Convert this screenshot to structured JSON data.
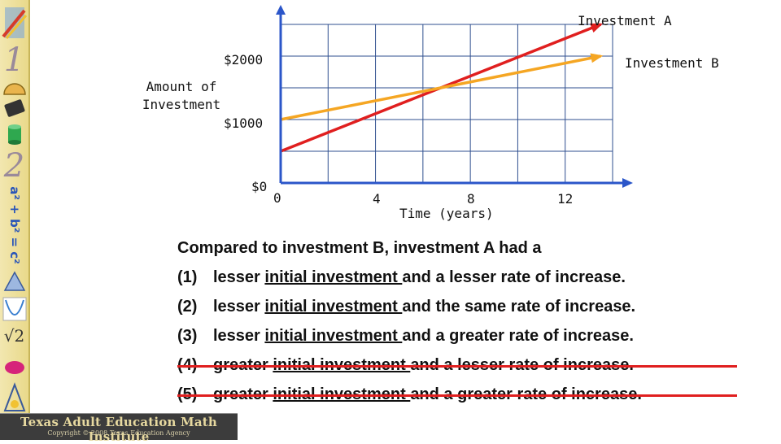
{
  "footer": {
    "title": "Texas Adult Education Math Institute",
    "copyright": "Copyright © 2008 Texas Education Agency"
  },
  "sidebar": {
    "icons": [
      "pencil-icon",
      "digit-one-icon",
      "protractor-icon",
      "calculator-icon",
      "cylinder-icon",
      "digit-two-icon",
      "pythagorean-formula",
      "triangle-icon",
      "parabola-graph-icon",
      "square-root-icon",
      "ellipse-icon",
      "geometry-tools-icon"
    ],
    "formula": "a² + b² = c²",
    "sqrt_label": "√2"
  },
  "chart_data": {
    "type": "line",
    "xlabel": "Time (years)",
    "ylabel": "Amount of Investment",
    "x_ticks": [
      "0",
      "4",
      "8",
      "12"
    ],
    "y_ticks": [
      "$0",
      "$1000",
      "$2000"
    ],
    "xlim": [
      0,
      14
    ],
    "ylim": [
      0,
      2500
    ],
    "series": [
      {
        "name": "Investment A",
        "color": "#e01f1f",
        "x": [
          0,
          13.5
        ],
        "y": [
          500,
          2500
        ]
      },
      {
        "name": "Investment B",
        "color": "#f5a623",
        "x": [
          0,
          13.5
        ],
        "y": [
          1000,
          2000
        ]
      }
    ],
    "grid": true
  },
  "question": {
    "prompt": "Compared to investment B, investment A had a",
    "options": [
      {
        "number": "(1)",
        "before": "lesser ",
        "underlined": "initial investment ",
        "after": "and a lesser rate of increase.",
        "crossed_out": false
      },
      {
        "number": "(2)",
        "before": "lesser ",
        "underlined": "initial investment ",
        "after": "and the same rate of increase.",
        "crossed_out": false
      },
      {
        "number": "(3)",
        "before": "lesser ",
        "underlined": "initial investment ",
        "after": "and a greater rate of increase.",
        "crossed_out": false
      },
      {
        "number": "(4)",
        "before": "greater ",
        "underlined": "initial investment ",
        "after": "and a lesser rate of increase.",
        "crossed_out": true
      },
      {
        "number": "(5)",
        "before": "greater ",
        "underlined": "initial investment ",
        "after": "and a greater rate of increase.",
        "crossed_out": true
      }
    ]
  }
}
